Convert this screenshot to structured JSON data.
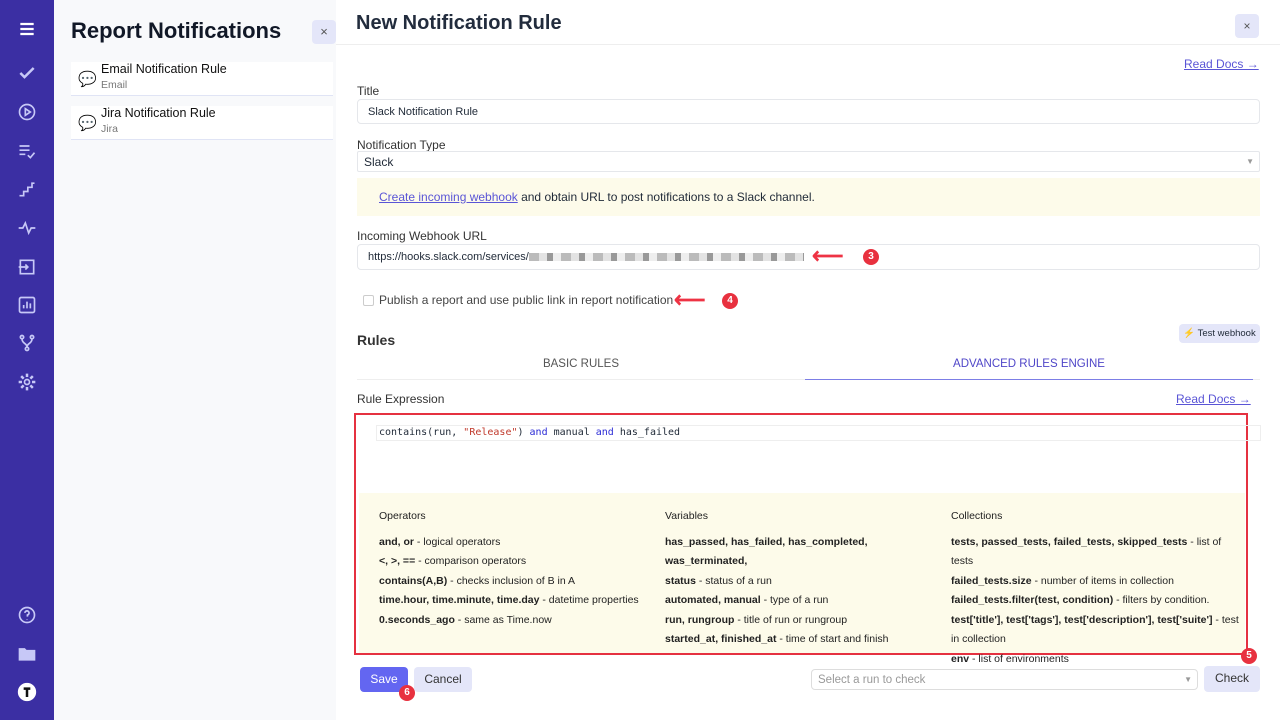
{
  "nav": {
    "icons": [
      "menu-icon",
      "check-icon",
      "play-circle-icon",
      "list-check-icon",
      "steps-icon",
      "pulse-icon",
      "import-icon",
      "bar-chart-icon",
      "git-branch-icon",
      "gear-icon"
    ],
    "bottom": [
      "help-icon",
      "folder-icon",
      "logo-icon"
    ]
  },
  "left": {
    "title": "Report Notifications",
    "close": "×",
    "items": [
      {
        "title": "Email Notification Rule",
        "sub": "Email"
      },
      {
        "title": "Jira Notification Rule",
        "sub": "Jira"
      }
    ]
  },
  "main": {
    "title": "New Notification Rule",
    "close": "×",
    "read_docs": "Read Docs →",
    "title_label": "Title",
    "title_value": "Slack Notification Rule",
    "type_label": "Notification Type",
    "type_value": "Slack",
    "note_link": "Create incoming webhook",
    "note_text": " and obtain URL to post notifications to a Slack channel.",
    "webhook_label": "Incoming Webhook URL",
    "webhook_value": "https://hooks.slack.com/services/",
    "publish_label": "Publish a report and use public link in report notification",
    "rules_title": "Rules",
    "test_webhook": "Test webhook",
    "tabs": [
      "BASIC RULES",
      "ADVANCED RULES ENGINE"
    ],
    "rule_expr_label": "Rule Expression",
    "read_docs2": "Read Docs →",
    "code": {
      "p1": "contains(run, ",
      "p2": "\"Release\"",
      "p3": ") ",
      "and1": "and",
      "p4": " manual ",
      "and2": "and",
      "p5": " has_failed"
    },
    "help": {
      "operators": {
        "title": "Operators",
        "rows": [
          [
            "and, or",
            " - logical operators"
          ],
          [
            "<, >, ==",
            " - comparison operators"
          ],
          [
            "contains(A,B)",
            " - checks inclusion of B in A"
          ],
          [
            "time.hour, time.minute, time.day",
            " - datetime properties"
          ],
          [
            "0.seconds_ago",
            " - same as Time.now"
          ]
        ]
      },
      "variables": {
        "title": "Variables",
        "rows": [
          [
            "has_passed, has_failed, has_completed, was_terminated,",
            ""
          ],
          [
            "status",
            " - status of a run"
          ],
          [
            "automated, manual",
            " - type of a run"
          ],
          [
            "run, rungroup",
            " - title of run or rungroup"
          ],
          [
            "started_at, finished_at",
            " - time of start and finish"
          ]
        ]
      },
      "collections": {
        "title": "Collections",
        "rows": [
          [
            "tests, passed_tests, failed_tests, skipped_tests",
            " - list of tests"
          ],
          [
            "failed_tests.size",
            " - number of items in collection"
          ],
          [
            "failed_tests.filter(test, condition)",
            " - filters by condition."
          ],
          [
            "test['title'], test['tags'], test['description'], test['suite']",
            " - test in collection"
          ],
          [
            "env",
            " - list of environments"
          ]
        ]
      }
    },
    "save": "Save",
    "cancel": "Cancel",
    "run_placeholder": "Select a run to check",
    "check": "Check",
    "badges": [
      "3",
      "4",
      "5",
      "6"
    ],
    "accent": "#6366f1",
    "annotation_color": "#e53140"
  }
}
